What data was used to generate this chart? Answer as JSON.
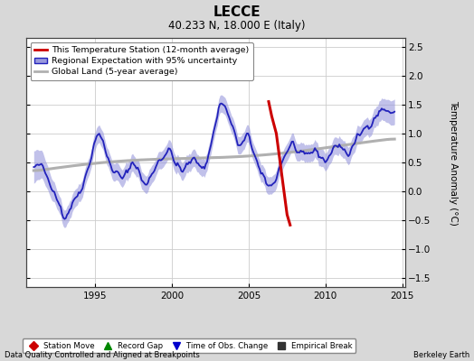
{
  "title": "LECCE",
  "subtitle": "40.233 N, 18.000 E (Italy)",
  "ylabel": "Temperature Anomaly (°C)",
  "xlabel_left": "Data Quality Controlled and Aligned at Breakpoints",
  "xlabel_right": "Berkeley Earth",
  "ylim": [
    -1.65,
    2.65
  ],
  "xlim": [
    1990.5,
    2015.2
  ],
  "xticks": [
    1995,
    2000,
    2005,
    2010,
    2015
  ],
  "yticks": [
    -1.5,
    -1.0,
    -0.5,
    0.0,
    0.5,
    1.0,
    1.5,
    2.0,
    2.5
  ],
  "bg_color": "#d8d8d8",
  "plot_bg_color": "#ffffff",
  "grid_color": "#cccccc",
  "regional_color": "#2222bb",
  "regional_fill_color": "#9999dd",
  "station_color": "#cc0000",
  "global_color": "#b0b0b0",
  "legend_items": [
    "This Temperature Station (12-month average)",
    "Regional Expectation with 95% uncertainty",
    "Global Land (5-year average)"
  ],
  "bottom_legend": [
    {
      "label": "Station Move",
      "color": "#cc0000",
      "marker": "D"
    },
    {
      "label": "Record Gap",
      "color": "#008800",
      "marker": "^"
    },
    {
      "label": "Time of Obs. Change",
      "color": "#0000cc",
      "marker": "v"
    },
    {
      "label": "Empirical Break",
      "color": "#333333",
      "marker": "s"
    }
  ]
}
